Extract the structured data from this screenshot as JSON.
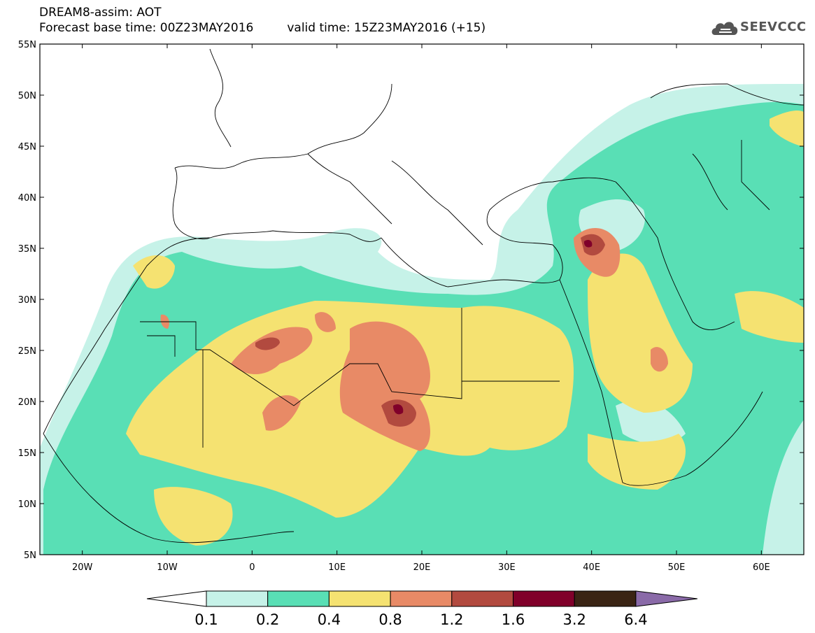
{
  "header": {
    "line1": "DREAM8-assim: AOT",
    "base_time": "Forecast base time: 00Z23MAY2016",
    "valid_time": "valid time: 15Z23MAY2016 (+15)"
  },
  "logo": {
    "text": "SEEVCCC",
    "icon": "cloud-icon",
    "color": "#555555"
  },
  "map": {
    "lon_range": [
      -25,
      65
    ],
    "lat_range": [
      5,
      55
    ],
    "lat_ticks": [
      "55N",
      "50N",
      "45N",
      "40N",
      "35N",
      "30N",
      "25N",
      "20N",
      "15N",
      "10N",
      "5N"
    ],
    "lon_ticks": [
      "20W",
      "10W",
      "0",
      "10E",
      "20E",
      "30E",
      "40E",
      "50E",
      "60E"
    ],
    "lon_tick_values": [
      -20,
      -10,
      0,
      10,
      20,
      30,
      40,
      50,
      60
    ],
    "lat_tick_values": [
      55,
      50,
      45,
      40,
      35,
      30,
      25,
      20,
      15,
      10,
      5
    ]
  },
  "colorbar": {
    "labels": [
      "0.1",
      "0.2",
      "0.4",
      "0.8",
      "1.2",
      "1.6",
      "3.2",
      "6.4"
    ],
    "colors": [
      "#ffffff",
      "#c6f2e8",
      "#59dfb5",
      "#f5e271",
      "#e88a66",
      "#b24a3f",
      "#80002a",
      "#3a2414",
      "#8a6aa8"
    ]
  }
}
